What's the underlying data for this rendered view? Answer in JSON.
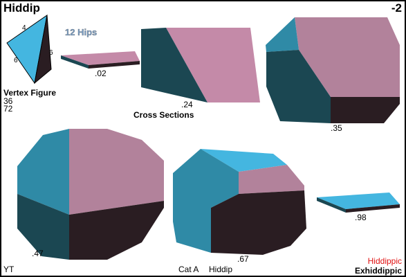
{
  "header": {
    "title": "Hiddip",
    "index": "-2"
  },
  "subtitle": "12 Hips",
  "vertex_figure": {
    "edges": [
      "4",
      "6",
      "6"
    ],
    "label": "Vertex Figure",
    "counts": [
      "36",
      "72"
    ]
  },
  "cross_sections": {
    "label": "Cross Sections",
    "sections": [
      ".02",
      ".24",
      ".35",
      ".47",
      ".67",
      ".98"
    ]
  },
  "footer": {
    "author": "YT",
    "category": "Cat A",
    "name": "Hiddip",
    "army": "Hiddippic",
    "regiment": "Exhiddippic"
  }
}
